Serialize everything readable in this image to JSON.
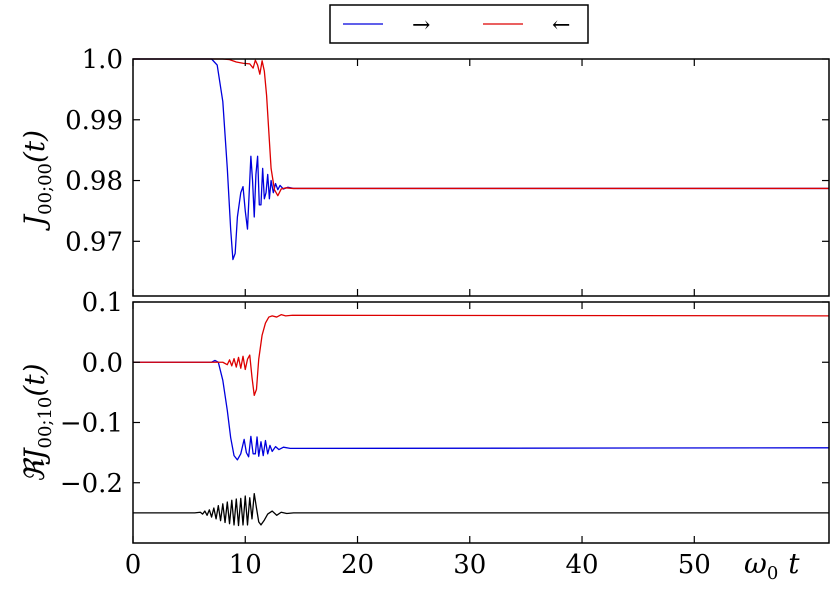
{
  "chart_data": [
    {
      "type": "line",
      "panel": "top",
      "ylabel": "J00;00(t)",
      "ylabel_main": "J",
      "ylabel_sub": "00;00",
      "ylabel_arg": "(t)",
      "xlim": [
        0,
        62
      ],
      "ylim": [
        0.961,
        1.0
      ],
      "yticks": [
        1.0,
        0.99,
        0.98,
        0.97
      ],
      "ytick_labels": [
        "1.0",
        "0.99",
        "0.98",
        "0.97"
      ],
      "legend": {
        "placement": "top-center",
        "entries": [
          {
            "label": "→",
            "color": "#0000dd"
          },
          {
            "label": "←",
            "color": "#dd0000"
          }
        ]
      },
      "series": [
        {
          "name": "→",
          "color": "#0000dd",
          "points": [
            [
              0,
              1.0
            ],
            [
              7.0,
              1.0
            ],
            [
              7.5,
              0.999
            ],
            [
              8.0,
              0.993
            ],
            [
              8.4,
              0.982
            ],
            [
              8.7,
              0.972
            ],
            [
              8.9,
              0.967
            ],
            [
              9.1,
              0.968
            ],
            [
              9.3,
              0.974
            ],
            [
              9.6,
              0.978
            ],
            [
              9.8,
              0.979
            ],
            [
              10.0,
              0.975
            ],
            [
              10.2,
              0.972
            ],
            [
              10.35,
              0.978
            ],
            [
              10.5,
              0.984
            ],
            [
              10.65,
              0.98
            ],
            [
              10.8,
              0.974
            ],
            [
              10.95,
              0.981
            ],
            [
              11.1,
              0.984
            ],
            [
              11.25,
              0.976
            ],
            [
              11.4,
              0.976
            ],
            [
              11.55,
              0.982
            ],
            [
              11.7,
              0.977
            ],
            [
              11.85,
              0.978
            ],
            [
              12.0,
              0.981
            ],
            [
              12.15,
              0.977
            ],
            [
              12.3,
              0.98
            ],
            [
              12.5,
              0.978
            ],
            [
              12.7,
              0.9795
            ],
            [
              12.9,
              0.9785
            ],
            [
              13.1,
              0.9792
            ],
            [
              13.4,
              0.9786
            ],
            [
              13.8,
              0.9789
            ],
            [
              14.3,
              0.9787
            ],
            [
              62,
              0.9787
            ]
          ]
        },
        {
          "name": "←",
          "color": "#dd0000",
          "points": [
            [
              0,
              1.0
            ],
            [
              8.0,
              1.0
            ],
            [
              8.6,
              0.9999
            ],
            [
              9.2,
              0.9995
            ],
            [
              9.8,
              0.9993
            ],
            [
              10.4,
              0.9992
            ],
            [
              10.7,
              0.9985
            ],
            [
              10.9,
              0.9998
            ],
            [
              11.1,
              0.999
            ],
            [
              11.3,
              0.9975
            ],
            [
              11.5,
              0.9997
            ],
            [
              11.7,
              0.998
            ],
            [
              11.9,
              0.994
            ],
            [
              12.1,
              0.988
            ],
            [
              12.3,
              0.982
            ],
            [
              12.6,
              0.9785
            ],
            [
              12.9,
              0.9775
            ],
            [
              13.2,
              0.9786
            ],
            [
              13.6,
              0.9788
            ],
            [
              14.2,
              0.9787
            ],
            [
              62,
              0.9787
            ]
          ]
        }
      ]
    },
    {
      "type": "line",
      "panel": "bottom",
      "ylabel": "ℜJ00;10(t)",
      "ylabel_main": "ℜJ",
      "ylabel_sub": "00;10",
      "ylabel_arg": "(t)",
      "xlabel": "ω0 t",
      "xlabel_main": "ω",
      "xlabel_sub": "0",
      "xlabel_var": "t",
      "xlim": [
        0,
        62
      ],
      "ylim": [
        -0.3,
        0.1
      ],
      "xticks": [
        0,
        10,
        20,
        30,
        40,
        50
      ],
      "xtick_labels": [
        "0",
        "10",
        "20",
        "30",
        "40",
        "50"
      ],
      "yticks": [
        0.1,
        0.0,
        -0.1,
        -0.2
      ],
      "ytick_labels": [
        "0.1",
        "0.0",
        "−0.1",
        "−0.2"
      ],
      "series": [
        {
          "name": "→",
          "color": "#0000dd",
          "points": [
            [
              0,
              0.0
            ],
            [
              7.0,
              0.0
            ],
            [
              7.3,
              0.003
            ],
            [
              7.6,
              0.0
            ],
            [
              8.0,
              -0.03
            ],
            [
              8.4,
              -0.08
            ],
            [
              8.7,
              -0.125
            ],
            [
              9.0,
              -0.155
            ],
            [
              9.3,
              -0.162
            ],
            [
              9.6,
              -0.152
            ],
            [
              9.9,
              -0.128
            ],
            [
              10.1,
              -0.15
            ],
            [
              10.3,
              -0.157
            ],
            [
              10.5,
              -0.123
            ],
            [
              10.7,
              -0.152
            ],
            [
              10.9,
              -0.152
            ],
            [
              11.05,
              -0.124
            ],
            [
              11.2,
              -0.156
            ],
            [
              11.4,
              -0.132
            ],
            [
              11.6,
              -0.155
            ],
            [
              11.8,
              -0.13
            ],
            [
              12.0,
              -0.152
            ],
            [
              12.2,
              -0.138
            ],
            [
              12.4,
              -0.148
            ],
            [
              12.7,
              -0.14
            ],
            [
              13.0,
              -0.145
            ],
            [
              13.4,
              -0.141
            ],
            [
              14.0,
              -0.143
            ],
            [
              62,
              -0.142
            ]
          ]
        },
        {
          "name": "←",
          "color": "#dd0000",
          "points": [
            [
              0,
              0.0
            ],
            [
              8.0,
              0.0
            ],
            [
              8.4,
              -0.004
            ],
            [
              8.6,
              0.004
            ],
            [
              8.8,
              -0.006
            ],
            [
              9.0,
              0.006
            ],
            [
              9.2,
              -0.008
            ],
            [
              9.4,
              0.008
            ],
            [
              9.6,
              -0.01
            ],
            [
              9.8,
              0.01
            ],
            [
              10.0,
              -0.012
            ],
            [
              10.2,
              0.005
            ],
            [
              10.4,
              0.012
            ],
            [
              10.6,
              -0.025
            ],
            [
              10.8,
              -0.055
            ],
            [
              11.0,
              -0.045
            ],
            [
              11.2,
              0.005
            ],
            [
              11.5,
              0.045
            ],
            [
              11.8,
              0.065
            ],
            [
              12.1,
              0.075
            ],
            [
              12.4,
              0.077
            ],
            [
              12.8,
              0.075
            ],
            [
              13.2,
              0.079
            ],
            [
              13.6,
              0.077
            ],
            [
              14.2,
              0.078
            ],
            [
              62,
              0.077
            ]
          ]
        },
        {
          "name": "",
          "color": "#000000",
          "points": [
            [
              0,
              -0.25
            ],
            [
              5.5,
              -0.25
            ],
            [
              6.0,
              -0.249
            ],
            [
              6.2,
              -0.252
            ],
            [
              6.4,
              -0.247
            ],
            [
              6.6,
              -0.254
            ],
            [
              6.8,
              -0.245
            ],
            [
              7.0,
              -0.257
            ],
            [
              7.2,
              -0.242
            ],
            [
              7.4,
              -0.26
            ],
            [
              7.6,
              -0.238
            ],
            [
              7.8,
              -0.263
            ],
            [
              8.0,
              -0.235
            ],
            [
              8.2,
              -0.266
            ],
            [
              8.4,
              -0.232
            ],
            [
              8.6,
              -0.268
            ],
            [
              8.8,
              -0.229
            ],
            [
              9.0,
              -0.27
            ],
            [
              9.2,
              -0.227
            ],
            [
              9.4,
              -0.271
            ],
            [
              9.6,
              -0.226
            ],
            [
              9.8,
              -0.27
            ],
            [
              10.0,
              -0.222
            ],
            [
              10.2,
              -0.27
            ],
            [
              10.4,
              -0.225
            ],
            [
              10.6,
              -0.26
            ],
            [
              10.8,
              -0.218
            ],
            [
              11.0,
              -0.242
            ],
            [
              11.2,
              -0.265
            ],
            [
              11.4,
              -0.27
            ],
            [
              11.7,
              -0.262
            ],
            [
              12.0,
              -0.252
            ],
            [
              12.4,
              -0.247
            ],
            [
              12.8,
              -0.254
            ],
            [
              13.2,
              -0.249
            ],
            [
              13.7,
              -0.251
            ],
            [
              14.3,
              -0.25
            ],
            [
              62,
              -0.25
            ]
          ]
        }
      ]
    }
  ]
}
